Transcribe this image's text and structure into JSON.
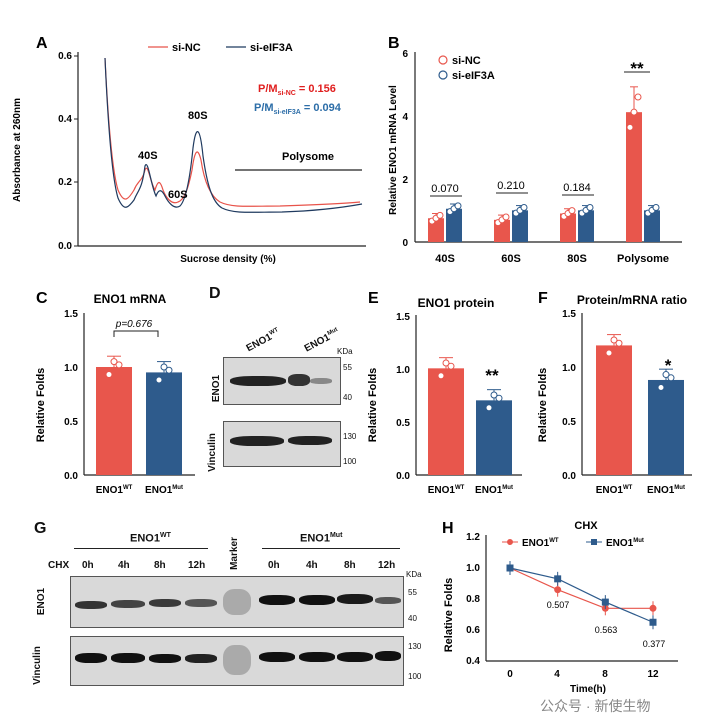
{
  "panels": {
    "A": {
      "label": "A",
      "legend": [
        "si-NC",
        "si-eIF3A"
      ],
      "ylabel": "Absorbance at 260nm",
      "xlabel": "Sucrose density (%)",
      "yticks": [
        "0.0",
        "0.2",
        "0.4",
        "0.6"
      ],
      "peaks": {
        "s40": "40S",
        "s60": "60S",
        "s80": "80S",
        "poly": "Polysome"
      },
      "pm_nc_main": "P/M",
      "pm_nc_sub": "si-NC",
      "pm_nc_val": " = 0.156",
      "pm_ei_main": "P/M",
      "pm_ei_sub": "si-eIF3A",
      "pm_ei_val": " = 0.094",
      "colors": {
        "si_nc": "#e8534a",
        "si_eif3a": "#1f3a5f",
        "pm_nc": "#e01e1e",
        "pm_ei": "#2d6ea8"
      }
    },
    "B": {
      "label": "B",
      "ylabel": "Relative ENO1 mRNA Level",
      "legend": [
        "si-NC",
        "si-eIF3A"
      ],
      "categories": [
        "40S",
        "60S",
        "80S",
        "Polysome"
      ],
      "pvalues": [
        "0.070",
        "0.210",
        "0.184",
        "**"
      ],
      "yticks": [
        "0",
        "2",
        "4",
        "6"
      ]
    },
    "C": {
      "label": "C",
      "title": "ENO1 mRNA",
      "ylabel": "Relative Folds",
      "pvalue": "p=0.676",
      "yticks": [
        "0.0",
        "0.5",
        "1.0",
        "1.5"
      ],
      "xticks": [
        "ENO1",
        "ENO1"
      ],
      "xsup": [
        "WT",
        "Mut"
      ]
    },
    "D": {
      "label": "D",
      "lanes": [
        "ENO1",
        "ENO1"
      ],
      "lanesup": [
        "WT",
        "Mut"
      ],
      "rows": [
        "ENO1",
        "Vinculin"
      ],
      "kda": "KDa",
      "markers": [
        "55",
        "40",
        "130",
        "100"
      ]
    },
    "E": {
      "label": "E",
      "title": "ENO1 protein",
      "ylabel": "Relative Folds",
      "sig": "**",
      "yticks": [
        "0.0",
        "0.5",
        "1.0",
        "1.5"
      ],
      "xticks": [
        "ENO1",
        "ENO1"
      ],
      "xsup": [
        "WT",
        "Mut"
      ]
    },
    "F": {
      "label": "F",
      "title": "Protein/mRNA ratio",
      "ylabel": "Relative Folds",
      "sig": "*",
      "yticks": [
        "0.0",
        "0.5",
        "1.0",
        "1.5"
      ],
      "xticks": [
        "ENO1",
        "ENO1"
      ],
      "xsup": [
        "WT",
        "Mut"
      ]
    },
    "G": {
      "label": "G",
      "group_wt": "ENO1",
      "group_mut": "ENO1",
      "group_sup": [
        "WT",
        "Mut"
      ],
      "marker": "Marker",
      "chx": "CHX",
      "times": [
        "0h",
        "4h",
        "8h",
        "12h"
      ],
      "rows": [
        "ENO1",
        "Vinculin"
      ],
      "kda": "KDa",
      "markers": [
        "55",
        "40",
        "130",
        "100"
      ]
    },
    "H": {
      "label": "H",
      "title": "CHX",
      "ylabel": "Relative Folds",
      "xlabel": "Time(h)",
      "legend": [
        "ENO1",
        "ENO1"
      ],
      "legendsup": [
        "WT",
        "Mut"
      ],
      "annotations": [
        "0.507",
        "0.563",
        "0.377"
      ],
      "yticks": [
        "0.4",
        "0.6",
        "0.8",
        "1.0",
        "1.2"
      ],
      "xticks": [
        "0",
        "4",
        "8",
        "12"
      ]
    }
  },
  "watermark": "公众号 · 新使生物",
  "colors": {
    "red": "#e8564c",
    "blue": "#2e5b8c"
  },
  "chart_data": [
    {
      "type": "bar",
      "panel": "B",
      "title": "",
      "ylabel": "Relative ENO1 mRNA Level",
      "categories": [
        "40S",
        "60S",
        "80S",
        "Polysome"
      ],
      "series": [
        {
          "name": "si-NC",
          "values": [
            0.75,
            0.7,
            0.9,
            4.1
          ]
        },
        {
          "name": "si-eIF3A",
          "values": [
            1.05,
            1.0,
            1.0,
            1.0
          ]
        }
      ],
      "ylim": [
        0,
        6
      ]
    },
    {
      "type": "bar",
      "panel": "C",
      "title": "ENO1 mRNA",
      "categories": [
        "ENO1WT",
        "ENO1Mut"
      ],
      "values": [
        1.0,
        0.95
      ],
      "ylim": [
        0,
        1.5
      ]
    },
    {
      "type": "bar",
      "panel": "E",
      "title": "ENO1 protein",
      "categories": [
        "ENO1WT",
        "ENO1Mut"
      ],
      "values": [
        1.0,
        0.7
      ],
      "ylim": [
        0,
        1.5
      ]
    },
    {
      "type": "bar",
      "panel": "F",
      "title": "Protein/mRNA ratio",
      "categories": [
        "ENO1WT",
        "ENO1Mut"
      ],
      "values": [
        1.2,
        0.88
      ],
      "ylim": [
        0,
        1.5
      ]
    },
    {
      "type": "line",
      "panel": "H",
      "title": "CHX",
      "x": [
        0,
        4,
        8,
        12
      ],
      "series": [
        {
          "name": "ENO1WT",
          "values": [
            1.0,
            0.86,
            0.74,
            0.74
          ]
        },
        {
          "name": "ENO1Mut",
          "values": [
            1.0,
            0.93,
            0.78,
            0.65
          ]
        }
      ],
      "ylim": [
        0.4,
        1.2
      ]
    }
  ]
}
